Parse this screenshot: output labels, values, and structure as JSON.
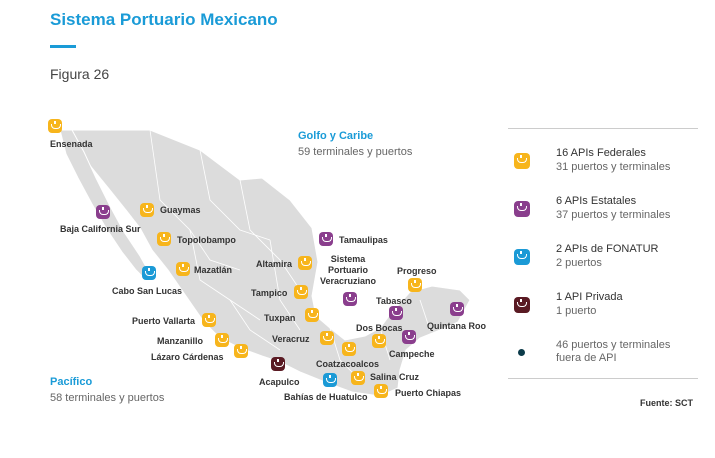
{
  "header": {
    "title": "Sistema Portuario Mexicano",
    "figure": "Figura 26"
  },
  "regions": {
    "gulf": {
      "title": "Golfo y Caribe",
      "subtitle": "59 terminales y puertos"
    },
    "pacific": {
      "title": "Pacífico",
      "subtitle": "58 terminales y puertos"
    }
  },
  "ports": {
    "ensenada": {
      "name": "Ensenada",
      "type": "federal"
    },
    "guaymas": {
      "name": "Guaymas",
      "type": "federal"
    },
    "baja_california_sur": {
      "name": "Baja California Sur",
      "type": "estatal"
    },
    "topolobampo": {
      "name": "Topolobampo",
      "type": "federal"
    },
    "mazatlan": {
      "name": "Mazatlán",
      "type": "federal"
    },
    "cabo_san_lucas": {
      "name": "Cabo San Lucas",
      "type": "fonatur"
    },
    "puerto_vallarta": {
      "name": "Puerto Vallarta",
      "type": "federal"
    },
    "manzanillo": {
      "name": "Manzanillo",
      "type": "federal"
    },
    "lazaro_cardenas": {
      "name": "Lázaro Cárdenas",
      "type": "federal"
    },
    "acapulco": {
      "name": "Acapulco",
      "type": "privada"
    },
    "bahias_de_huatulco": {
      "name": "Bahías de Huatulco",
      "type": "fonatur"
    },
    "salina_cruz": {
      "name": "Salina Cruz",
      "type": "federal"
    },
    "puerto_chiapas": {
      "name": "Puerto Chiapas",
      "type": "federal"
    },
    "tamaulipas": {
      "name": "Tamaulipas",
      "type": "estatal"
    },
    "altamira": {
      "name": "Altamira",
      "type": "federal"
    },
    "tampico": {
      "name": "Tampico",
      "type": "federal"
    },
    "sistema_portuario_veracruzano": {
      "name": "Sistema Portuario Veracruziano",
      "type": "estatal"
    },
    "tuxpan": {
      "name": "Tuxpan",
      "type": "federal"
    },
    "veracruz": {
      "name": "Veracruz",
      "type": "federal"
    },
    "coatzacoalcos": {
      "name": "Coatzacoalcos",
      "type": "federal"
    },
    "progreso": {
      "name": "Progreso",
      "type": "federal"
    },
    "tabasco": {
      "name": "Tabasco",
      "type": "estatal"
    },
    "dos_bocas": {
      "name": "Dos Bocas",
      "type": "federal"
    },
    "campeche": {
      "name": "Campeche",
      "type": "estatal"
    },
    "quintana_roo": {
      "name": "Quintana Roo",
      "type": "estatal"
    }
  },
  "legend": [
    {
      "main": "16 APIs Federales",
      "sub": "31 puertos y terminales",
      "type": "federal"
    },
    {
      "main": "6 APIs Estatales",
      "sub": "37 puertos y terminales",
      "type": "estatal"
    },
    {
      "main": "2 APIs de FONATUR",
      "sub": "2 puertos",
      "type": "fonatur"
    },
    {
      "main": "1 API Privada",
      "sub": "1 puerto",
      "type": "privada"
    },
    {
      "main": "",
      "sub": "46 puertos y terminales fuera de API",
      "type": "outside"
    }
  ],
  "colors": {
    "federal": "#f7b51c",
    "estatal": "#8a3e8d",
    "fonatur": "#1b9ad6",
    "privada": "#5a1a23",
    "outside": "#0c3b4a",
    "accent": "#1a9bd7",
    "land": "#dcdcdc"
  },
  "source": "Fuente: SCT"
}
